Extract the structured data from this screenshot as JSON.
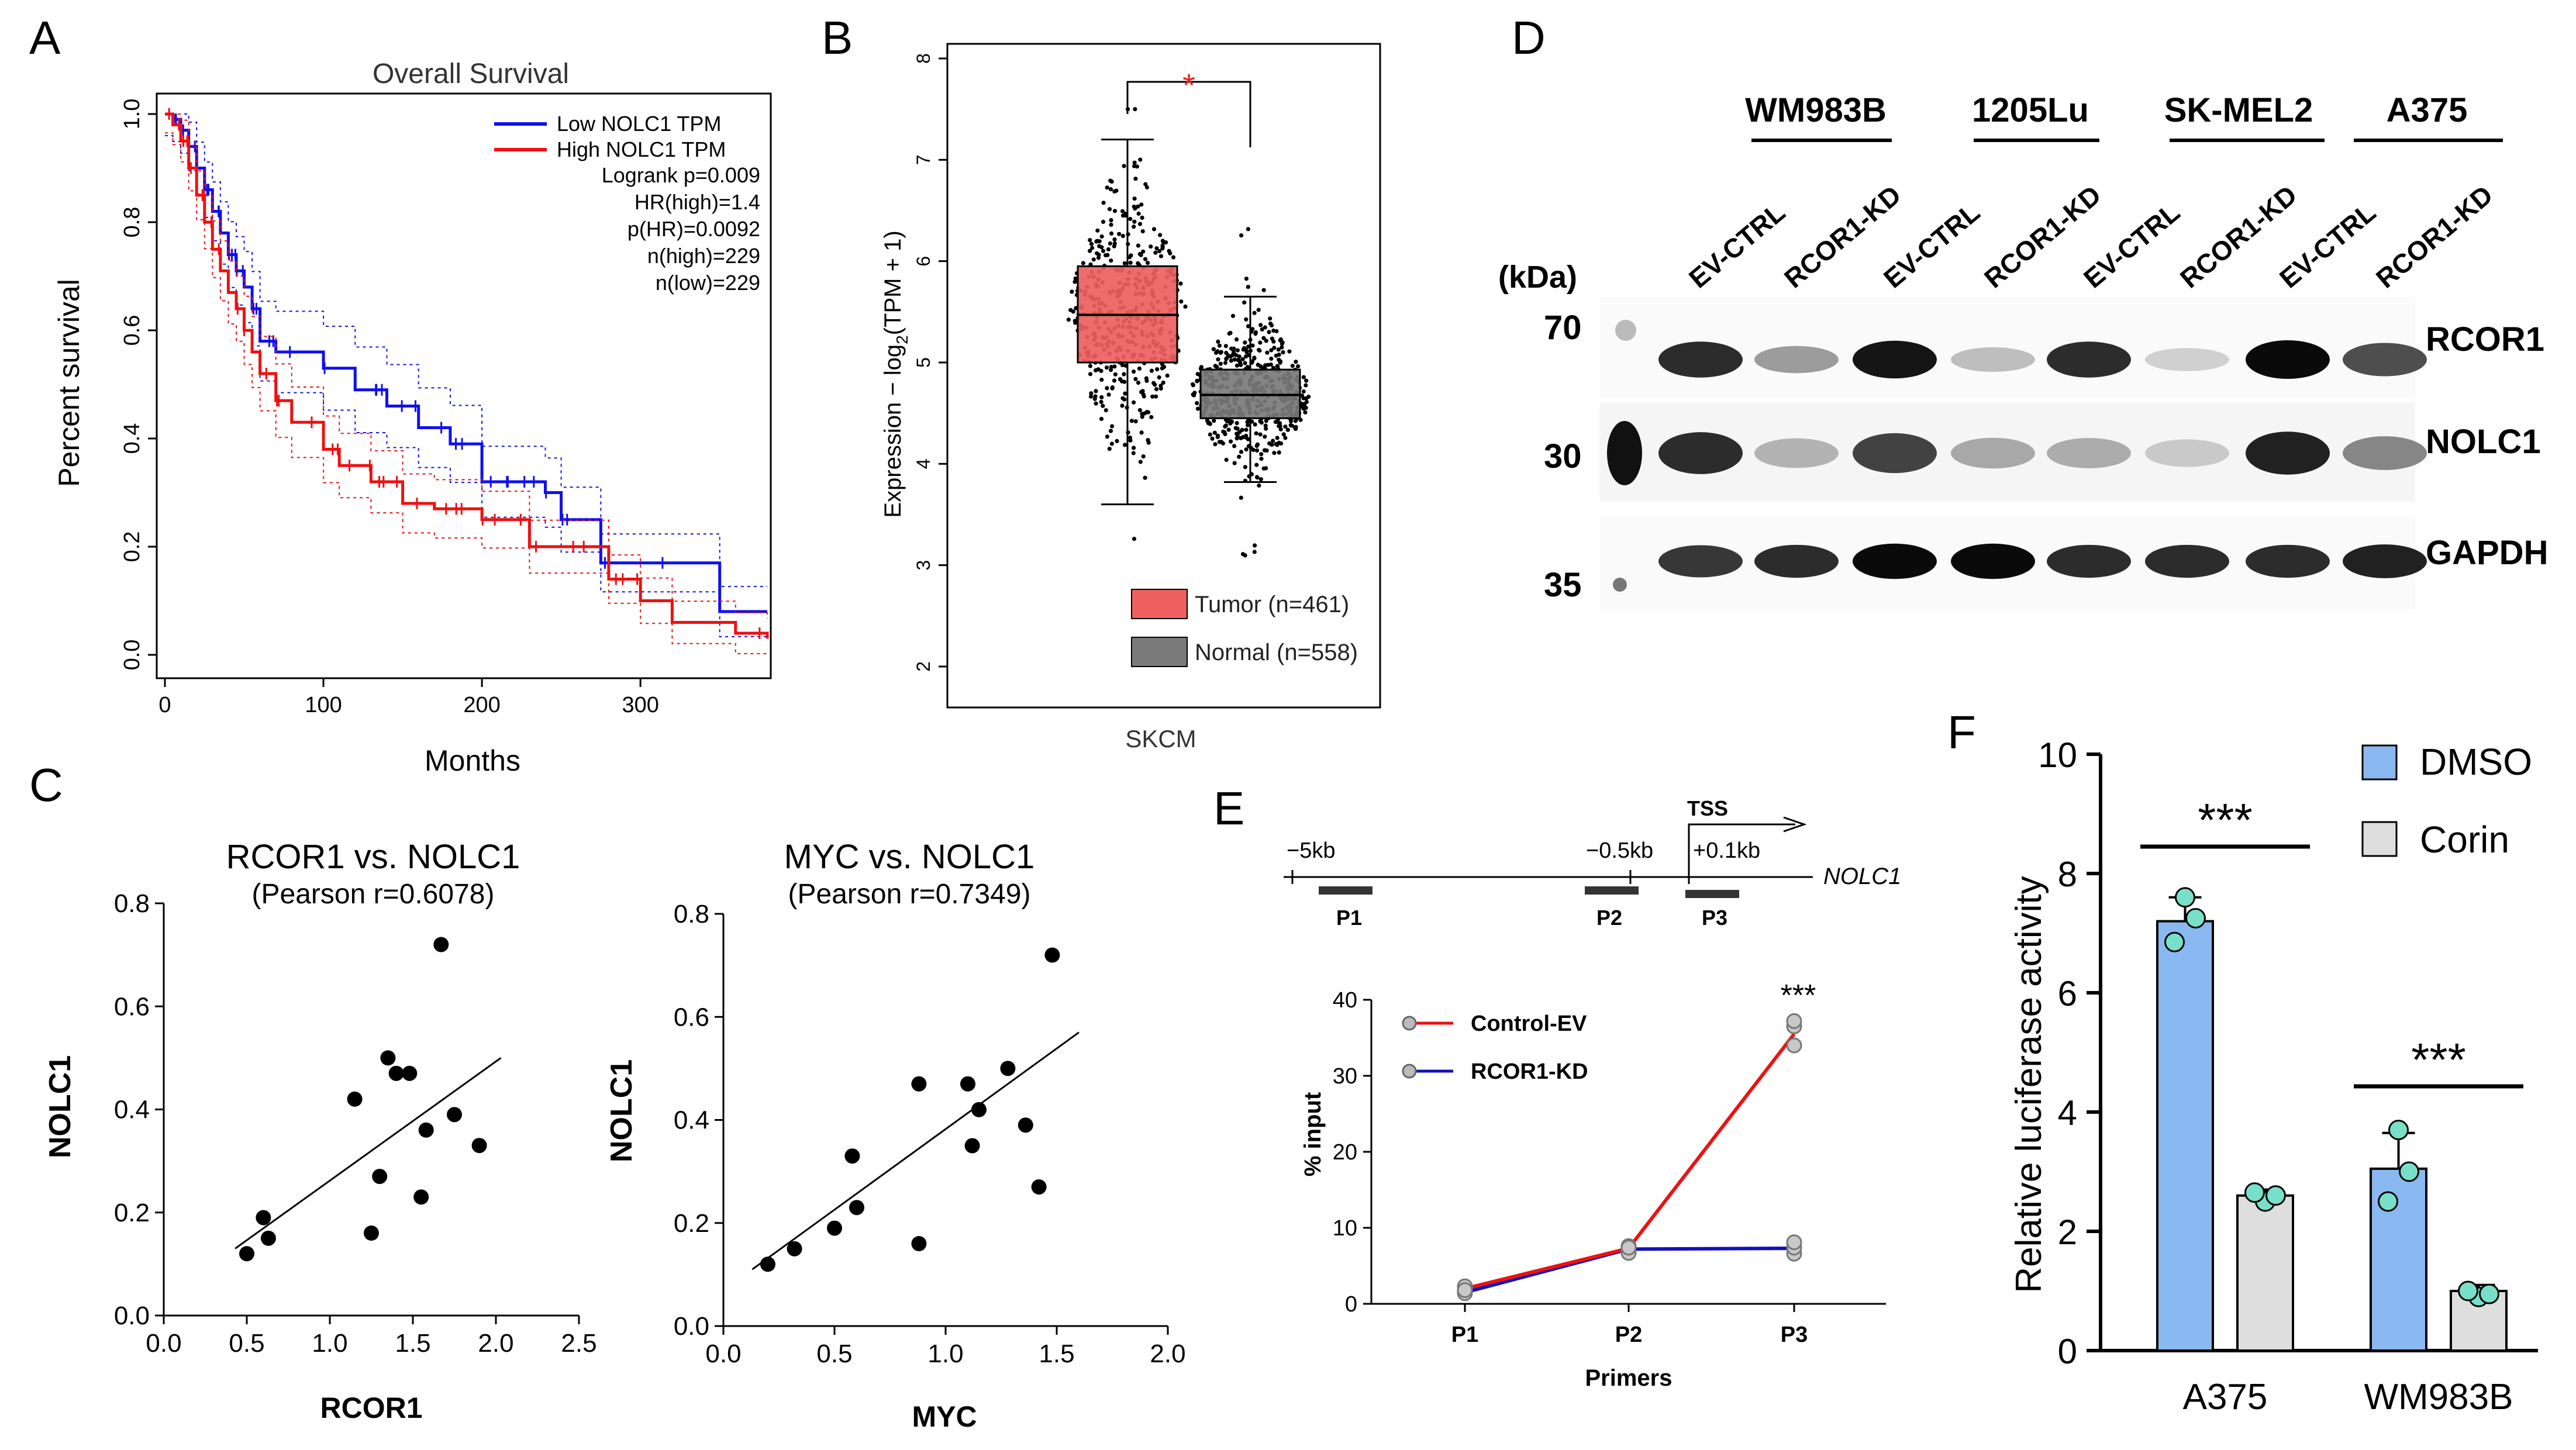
{
  "panels": {
    "A": {
      "label": "A",
      "chart_data": {
        "type": "line",
        "title": "Overall Survival",
        "xlabel": "Months",
        "ylabel": "Percent survival",
        "xlim": [
          0,
          380
        ],
        "ylim": [
          0,
          1.0
        ],
        "xticks": [
          "0",
          "100",
          "200",
          "300"
        ],
        "yticks": [
          "0.0",
          "0.2",
          "0.4",
          "0.6",
          "0.8",
          "1.0"
        ],
        "legend": [
          "Low NOLC1 TPM",
          "High NOLC1 TPM"
        ],
        "stats": [
          "Logrank p=0.009",
          "HR(high)=1.4",
          "p(HR)=0.0092",
          "n(high)=229",
          "n(low)=229"
        ],
        "colors": {
          "low": "#1010ee",
          "high": "#ee1010"
        },
        "series": [
          {
            "name": "Low NOLC1 TPM",
            "x": [
              0,
              5,
              10,
              15,
              20,
              25,
              30,
              35,
              40,
              45,
              50,
              55,
              60,
              70,
              80,
              100,
              120,
              140,
              160,
              180,
              200,
              220,
              240,
              250,
              260,
              275,
              350,
              380
            ],
            "y": [
              1.0,
              0.99,
              0.97,
              0.94,
              0.9,
              0.86,
              0.82,
              0.78,
              0.74,
              0.71,
              0.68,
              0.64,
              0.58,
              0.56,
              0.56,
              0.53,
              0.49,
              0.46,
              0.42,
              0.39,
              0.32,
              0.32,
              0.3,
              0.25,
              0.25,
              0.17,
              0.08,
              0.08
            ]
          },
          {
            "name": "High NOLC1 TPM",
            "x": [
              0,
              5,
              10,
              15,
              20,
              25,
              30,
              35,
              40,
              45,
              50,
              55,
              60,
              70,
              80,
              100,
              110,
              130,
              150,
              170,
              180,
              200,
              230,
              260,
              280,
              300,
              320,
              360,
              380
            ],
            "y": [
              1.0,
              0.98,
              0.95,
              0.9,
              0.85,
              0.8,
              0.75,
              0.71,
              0.67,
              0.64,
              0.6,
              0.56,
              0.52,
              0.47,
              0.43,
              0.38,
              0.35,
              0.32,
              0.28,
              0.27,
              0.27,
              0.25,
              0.2,
              0.2,
              0.14,
              0.1,
              0.06,
              0.04,
              0.03
            ]
          }
        ]
      }
    },
    "B": {
      "label": "B",
      "chart_data": {
        "type": "box",
        "ylabel_prefix": "Expression − log",
        "ylabel_sub": "2",
        "ylabel_suffix": "(TPM + 1)",
        "xlabel": "SKCM",
        "ylim": [
          2,
          8
        ],
        "yticks": [
          "2",
          "3",
          "4",
          "5",
          "6",
          "7",
          "8"
        ],
        "significance": "*",
        "groups": [
          {
            "name": "Tumor (n=461)",
            "n": 461,
            "color": "#ee6060",
            "q1": 5.0,
            "median": 5.47,
            "q3": 5.95,
            "whisker_low": 3.6,
            "whisker_high": 7.2
          },
          {
            "name": "Normal (n=558)",
            "n": 558,
            "color": "#7a7a7a",
            "q1": 4.45,
            "median": 4.68,
            "q3": 4.93,
            "whisker_low": 3.82,
            "whisker_high": 5.65
          }
        ]
      }
    },
    "C": {
      "label": "C",
      "charts": [
        {
          "type": "scatter",
          "title": "RCOR1 vs. NOLC1",
          "subtitle": "(Pearson r=0.6078)",
          "xlabel": "RCOR1",
          "ylabel": "NOLC1",
          "xlim": [
            0,
            2.5
          ],
          "ylim": [
            0,
            0.8
          ],
          "xticks": [
            "0.0",
            "0.5",
            "1.0",
            "1.5",
            "2.0",
            "2.5"
          ],
          "yticks": [
            "0.0",
            "0.2",
            "0.4",
            "0.6",
            "0.8"
          ],
          "x": [
            0.5,
            0.6,
            0.63,
            1.15,
            1.25,
            1.3,
            1.35,
            1.4,
            1.48,
            1.55,
            1.58,
            1.67,
            1.75,
            1.9
          ],
          "y": [
            0.12,
            0.19,
            0.15,
            0.42,
            0.16,
            0.27,
            0.5,
            0.47,
            0.47,
            0.23,
            0.36,
            0.72,
            0.39,
            0.33
          ],
          "fit": {
            "x": [
              0.43,
              2.03
            ],
            "y": [
              0.13,
              0.5
            ]
          }
        },
        {
          "type": "scatter",
          "title": "MYC vs. NOLC1",
          "subtitle": "(Pearson r=0.7349)",
          "xlabel": "MYC",
          "ylabel": "NOLC1",
          "xlim": [
            0,
            2.0
          ],
          "ylim": [
            0,
            0.8
          ],
          "xticks": [
            "0.0",
            "0.5",
            "1.0",
            "1.5",
            "2.0"
          ],
          "yticks": [
            "0.0",
            "0.2",
            "0.4",
            "0.6",
            "0.8"
          ],
          "x": [
            0.2,
            0.32,
            0.5,
            0.6,
            0.58,
            0.88,
            0.88,
            1.1,
            1.12,
            1.15,
            1.28,
            1.36,
            1.42,
            1.48
          ],
          "y": [
            0.12,
            0.15,
            0.19,
            0.23,
            0.33,
            0.16,
            0.47,
            0.47,
            0.35,
            0.42,
            0.5,
            0.39,
            0.27,
            0.72
          ],
          "fit": {
            "x": [
              0.13,
              1.6
            ],
            "y": [
              0.11,
              0.57
            ]
          }
        }
      ]
    },
    "D": {
      "label": "D",
      "cell_lines": [
        "WM983B",
        "1205Lu",
        "SK-MEL2",
        "A375"
      ],
      "lanes": [
        "EV-CTRL",
        "RCOR1-KD",
        "EV-CTRL",
        "RCOR1-KD",
        "EV-CTRL",
        "RCOR1-KD",
        "EV-CTRL",
        "RCOR1-KD"
      ],
      "kda_label": "(kDa)",
      "markers": [
        "70",
        "30",
        "35"
      ],
      "proteins": [
        "RCOR1",
        "NOLC1",
        "GAPDH"
      ],
      "band_intensity": {
        "RCOR1": [
          0.85,
          0.35,
          0.95,
          0.2,
          0.85,
          0.12,
          1.0,
          0.7
        ],
        "NOLC1": [
          0.85,
          0.25,
          0.75,
          0.3,
          0.28,
          0.15,
          0.9,
          0.45
        ],
        "GAPDH": [
          0.8,
          0.85,
          1.0,
          1.0,
          0.85,
          0.85,
          0.85,
          0.9
        ]
      }
    },
    "E": {
      "label": "E",
      "schematic": {
        "positions": [
          "−5kb",
          "−0.5kb",
          "+0.1kb"
        ],
        "tss": "TSS",
        "gene": "NOLC1",
        "primers": [
          "P1",
          "P2",
          "P3"
        ]
      },
      "chart_data": {
        "type": "line",
        "xlabel": "Primers",
        "ylabel": "% input",
        "categories": [
          "P1",
          "P2",
          "P3"
        ],
        "ylim": [
          0,
          40
        ],
        "yticks": [
          "0",
          "10",
          "20",
          "30",
          "40"
        ],
        "significance": "***",
        "series": [
          {
            "name": "Control-EV",
            "color": "#ee1111",
            "values": [
              2.0,
              7.3,
              35.5
            ],
            "replicates": [
              [
                1.7,
                2.3
              ],
              [
                6.8,
                7.6
              ],
              [
                34.0,
                36.5,
                37.2
              ]
            ]
          },
          {
            "name": "RCOR1-KD",
            "color": "#1111bb",
            "values": [
              1.5,
              7.2,
              7.3
            ],
            "replicates": [
              [
                1.4,
                1.8
              ],
              [
                6.7,
                7.4
              ],
              [
                6.6,
                7.4,
                8.1
              ]
            ]
          }
        ]
      }
    },
    "F": {
      "label": "F",
      "chart_data": {
        "type": "bar",
        "ylabel": "Relative luciferase activity",
        "categories": [
          "A375",
          "WM983B"
        ],
        "ylim": [
          0,
          10
        ],
        "yticks": [
          "0",
          "2",
          "4",
          "6",
          "8",
          "10"
        ],
        "significance": [
          "***",
          "***"
        ],
        "series": [
          {
            "name": "DMSO",
            "color": "#8ab8f0",
            "values": [
              7.2,
              3.05
            ],
            "errors": [
              0.4,
              0.6
            ],
            "points": [
              [
                7.6,
                6.85,
                7.25
              ],
              [
                3.7,
                2.5,
                3.0
              ]
            ]
          },
          {
            "name": "Corin",
            "color": "#dedede",
            "values": [
              2.6,
              1.0
            ],
            "errors": [
              0.1,
              0.1
            ],
            "points": [
              [
                2.5,
                2.65,
                2.6
              ],
              [
                0.9,
                1.0,
                0.95
              ]
            ]
          }
        ],
        "point_color": "#78e0c8"
      }
    }
  }
}
